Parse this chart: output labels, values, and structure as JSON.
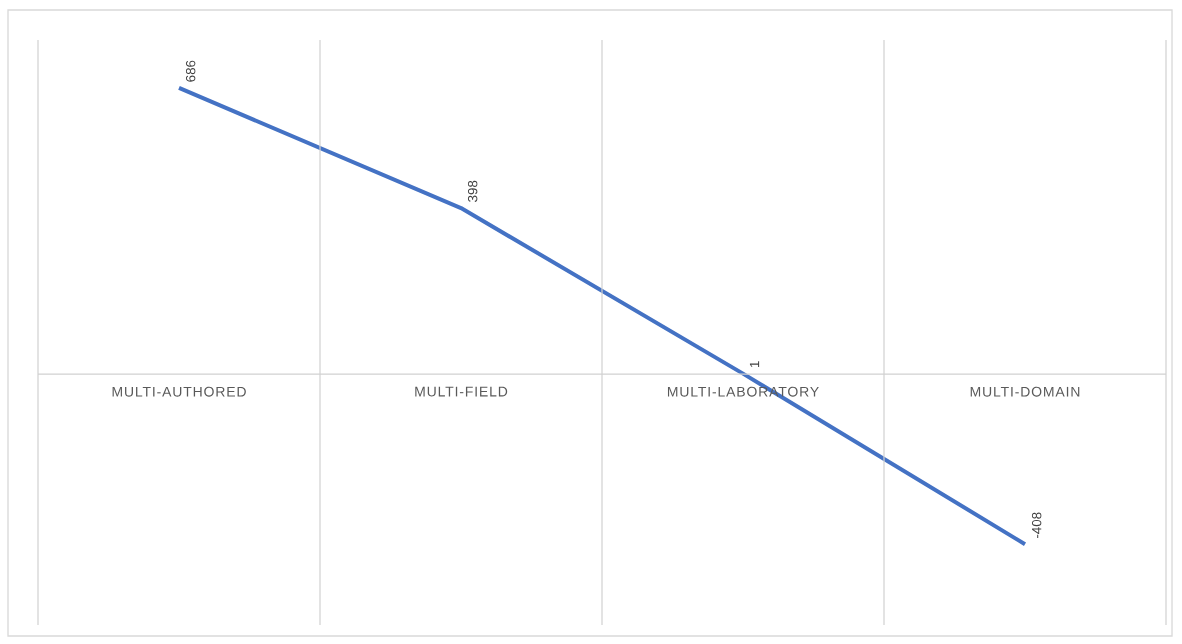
{
  "chart_data": {
    "type": "line",
    "categories": [
      "MULTI-AUTHORED",
      "MULTI-FIELD",
      "MULTI-LABORATORY",
      "MULTI-DOMAIN"
    ],
    "series": [
      {
        "color": "#4472c4",
        "values": [
          686,
          398,
          1,
          -408
        ]
      }
    ],
    "data_labels": true,
    "grid": "x",
    "tick_labels": "x",
    "line_style": "solid",
    "marker": "none"
  }
}
